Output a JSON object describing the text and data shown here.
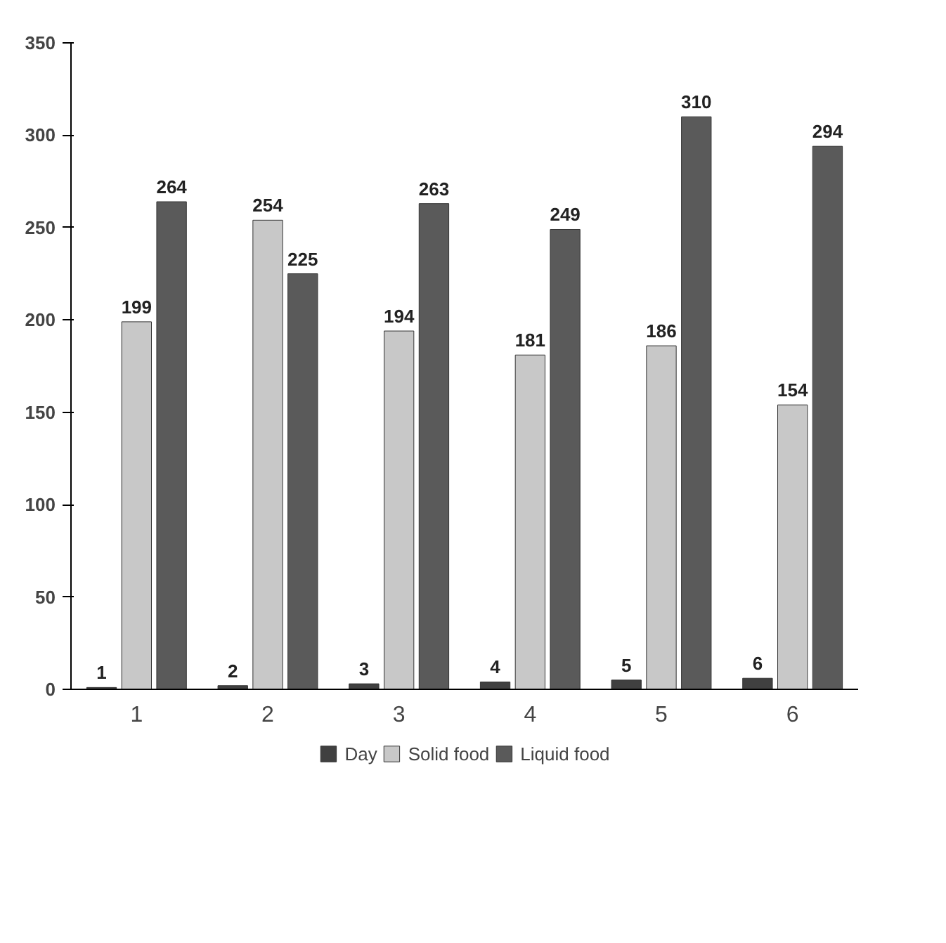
{
  "chart_data": {
    "type": "bar",
    "categories": [
      "1",
      "2",
      "3",
      "4",
      "5",
      "6"
    ],
    "series": [
      {
        "name": "Day",
        "color": "#404040",
        "values": [
          1,
          2,
          3,
          4,
          5,
          6
        ]
      },
      {
        "name": "Solid food",
        "color": "#c8c8c8",
        "values": [
          199,
          254,
          194,
          181,
          186,
          154
        ]
      },
      {
        "name": "Liquid food",
        "color": "#5a5a5a",
        "values": [
          264,
          225,
          263,
          249,
          310,
          294
        ]
      }
    ],
    "ylim": [
      0,
      350
    ],
    "yticks": [
      0,
      50,
      100,
      150,
      200,
      250,
      300,
      350
    ],
    "grid": false,
    "legend": "bottom",
    "data_labels": true
  }
}
